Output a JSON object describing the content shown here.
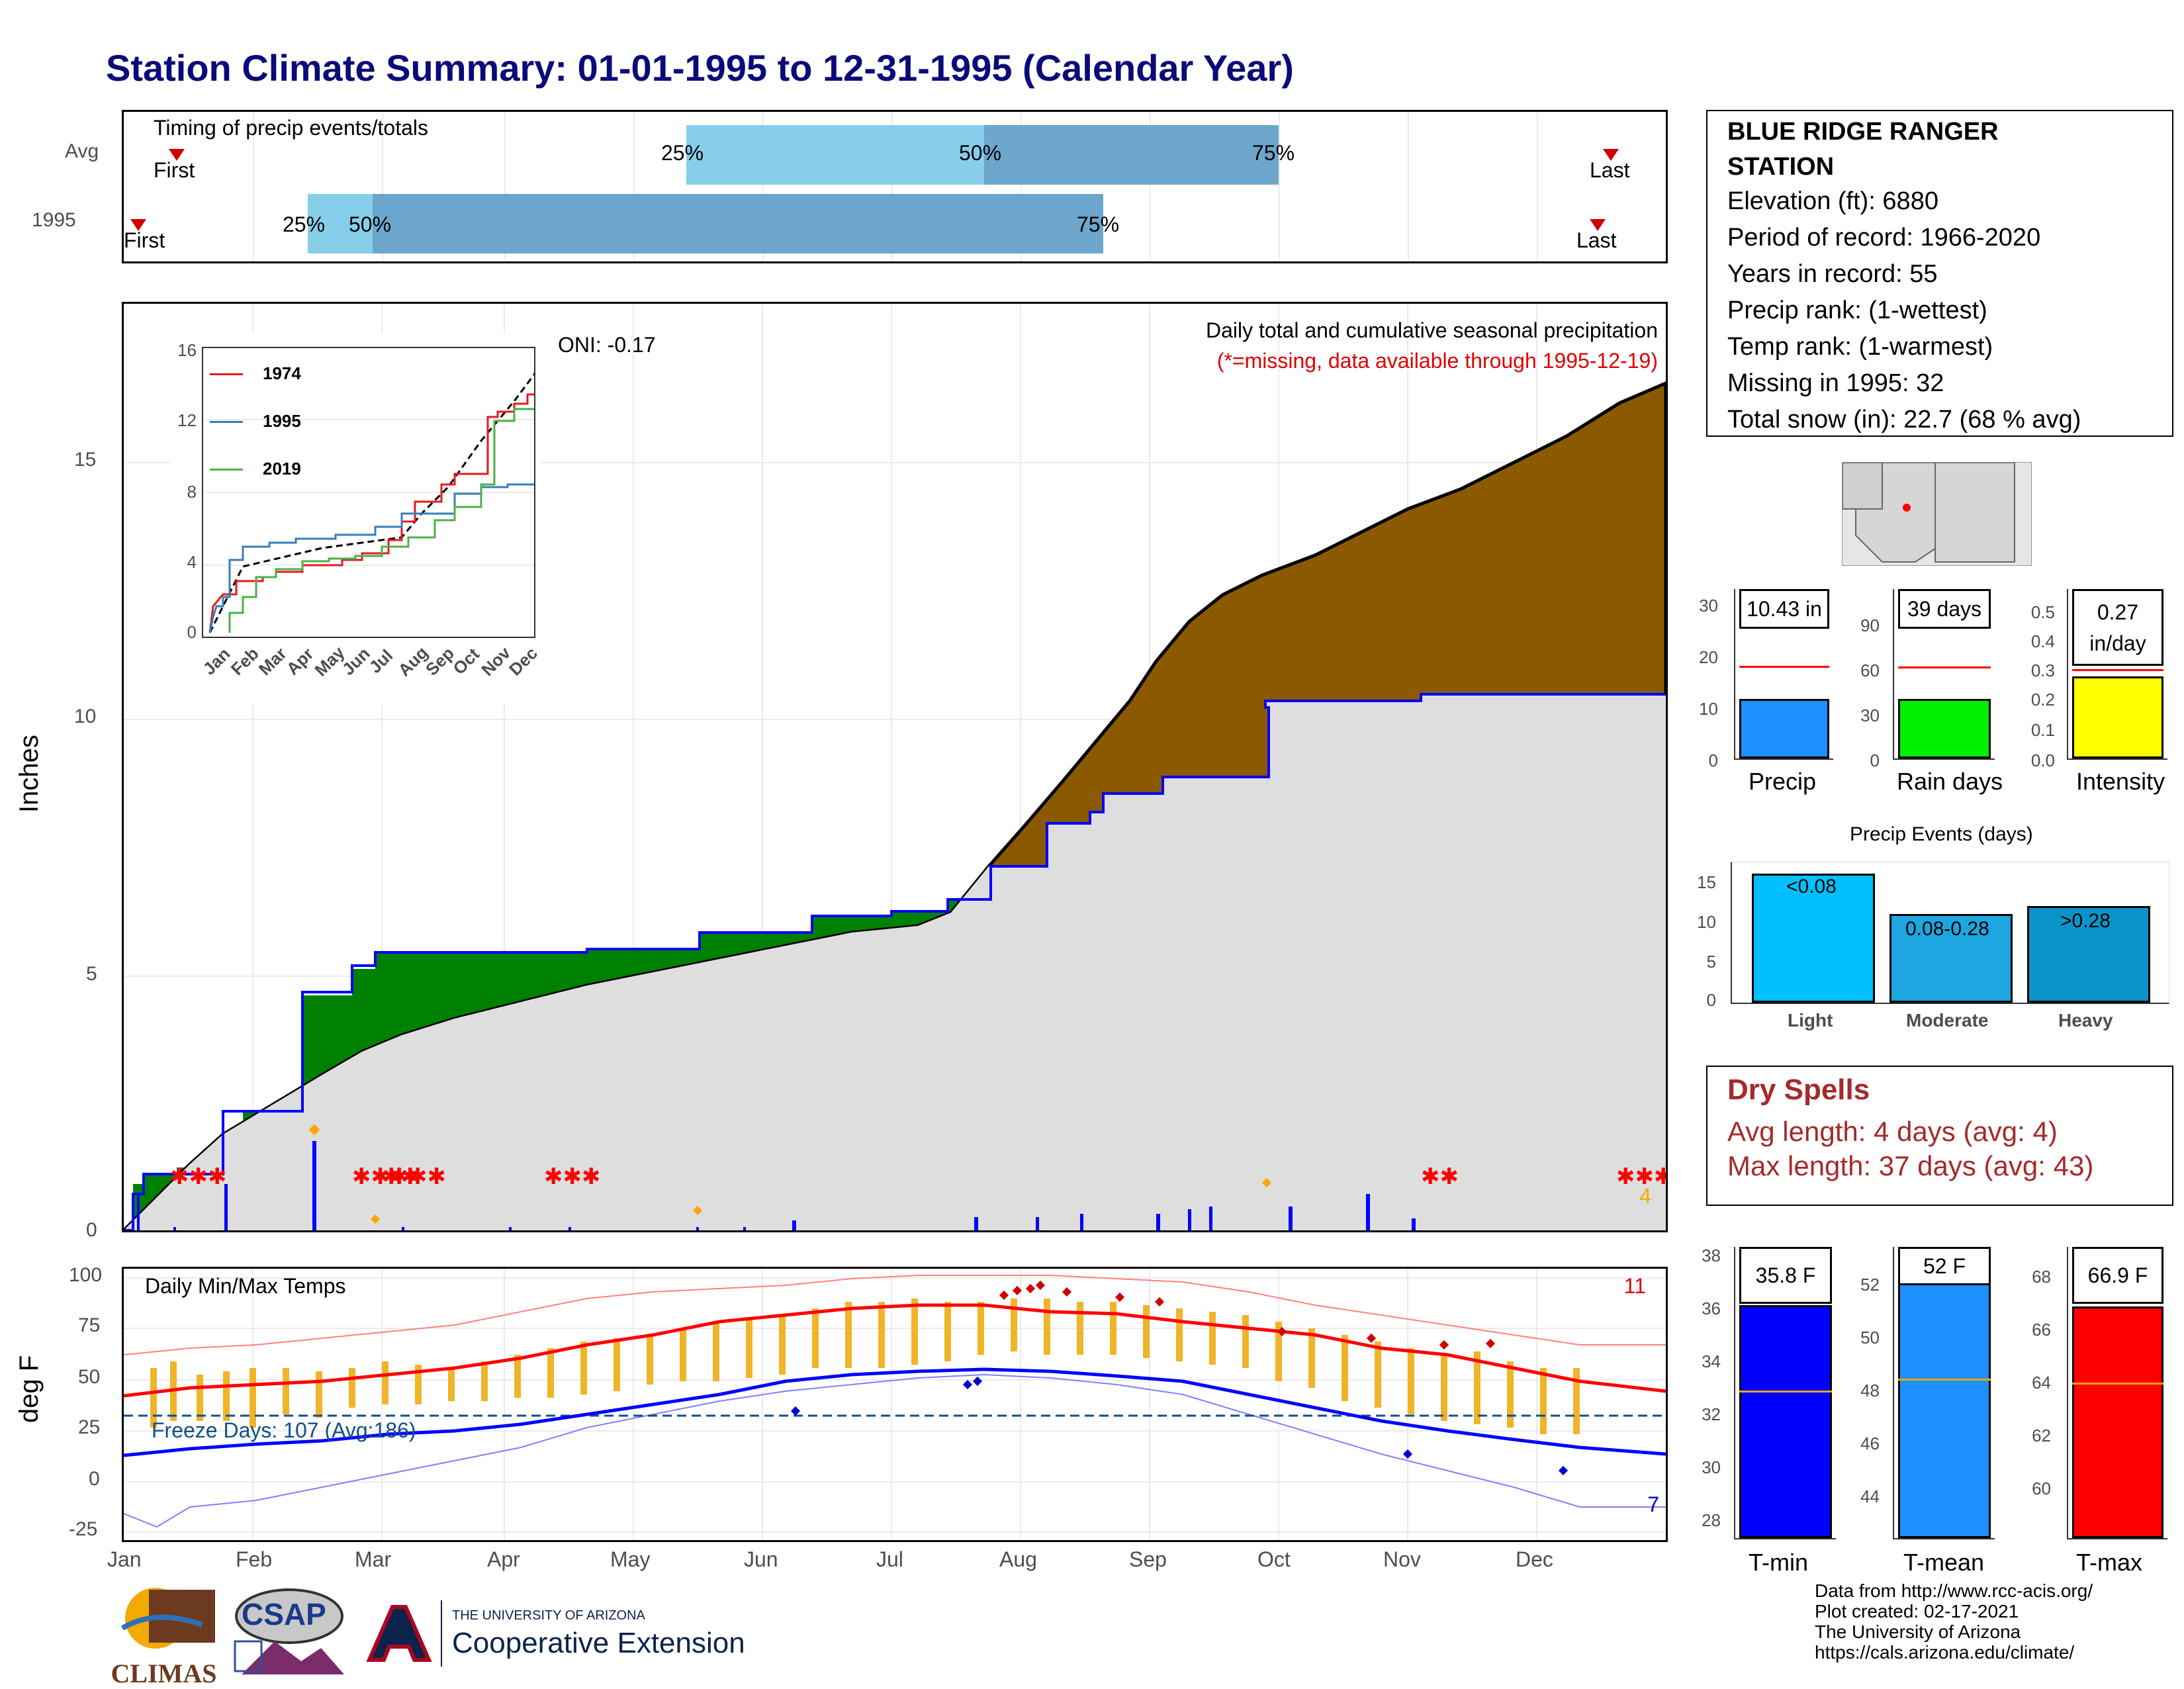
{
  "title": "Station Climate Summary: 01-01-1995 to 12-31-1995 (Calendar Year)",
  "timing": {
    "label": "Timing of precip events/totals",
    "rows": [
      "Avg",
      "1995"
    ],
    "avg": {
      "first_label": "First",
      "last_label": "Last",
      "p25": "25%",
      "p50": "50%",
      "p75": "75%"
    },
    "yr": {
      "first_label": "First",
      "last_label": "Last",
      "p25": "25%",
      "p50": "50%",
      "p75": "75%"
    }
  },
  "precip_panel": {
    "ytitle": "Inches",
    "yticks": [
      "0",
      "5",
      "10",
      "15"
    ],
    "oni": "ONI: -0.17",
    "subtitle": "Daily total and cumulative seasonal precipitation",
    "missing_note": "(*=missing, data available through 1995-12-19)",
    "missing_count": "4",
    "inset": {
      "legend": [
        "1974",
        "1995",
        "2019"
      ],
      "yticks": [
        "0",
        "4",
        "8",
        "12",
        "16"
      ],
      "xticks": [
        "Jan",
        "Feb",
        "Mar",
        "Apr",
        "May",
        "Jun",
        "Jul",
        "Aug",
        "Sep",
        "Oct",
        "Nov",
        "Dec"
      ]
    }
  },
  "temp_panel": {
    "ytitle": "deg F",
    "label": "Daily Min/Max Temps",
    "yticks": [
      "100",
      "75",
      "50",
      "25",
      "0",
      "-25"
    ],
    "freeze": "Freeze Days: 107 (Avg:186)",
    "top_count": "11",
    "bottom_count": "7"
  },
  "months": [
    "Jan",
    "Feb",
    "Mar",
    "Apr",
    "May",
    "Jun",
    "Jul",
    "Aug",
    "Sep",
    "Oct",
    "Nov",
    "Dec"
  ],
  "station": {
    "name_line1": "BLUE RIDGE RANGER",
    "name_line2": "STATION",
    "elevation": "Elevation (ft): 6880",
    "period": "Period of record: 1966-2020",
    "years": "Years in record: 55",
    "precip_rank": "Precip rank:  (1-wettest)",
    "temp_rank": "Temp rank:  (1-warmest)",
    "missing": "Missing in 1995: 32",
    "snow": "Total snow (in): 22.7 (68 % avg)"
  },
  "summary_bars": {
    "precip": {
      "label": "Precip",
      "value_text": "10.43 in",
      "value": 10.43,
      "avg": 16.5,
      "max": 30,
      "yticks": [
        "0",
        "10",
        "20",
        "30"
      ],
      "color": "#1e90ff"
    },
    "raindays": {
      "label": "Rain days",
      "value_text": "39 days",
      "value": 39,
      "avg": 58,
      "max": 105,
      "yticks": [
        "0",
        "30",
        "60",
        "90"
      ],
      "color": "#00ee00"
    },
    "intensity": {
      "label": "Intensity",
      "value_text_1": "0.27",
      "value_text_2": "in/day",
      "value": 0.27,
      "avg": 0.29,
      "max": 0.55,
      "yticks": [
        "0.0",
        "0.1",
        "0.2",
        "0.3",
        "0.4",
        "0.5"
      ],
      "color": "#ffff00"
    }
  },
  "precip_events": {
    "title": "Precip Events (days)",
    "yticks": [
      "0",
      "5",
      "10",
      "15"
    ],
    "categories": [
      "Light",
      "Moderate",
      "Heavy"
    ],
    "bar_labels": [
      "<0.08",
      "0.08-0.28",
      ">0.28"
    ],
    "values": [
      16,
      11,
      12
    ],
    "colors": [
      "#00bfff",
      "#1ea6e0",
      "#0b94c9"
    ]
  },
  "dry_spells": {
    "title": "Dry Spells",
    "avg": "Avg length: 4 days (avg: 4)",
    "max": "Max length: 37 days (avg: 43)"
  },
  "temp_bars": {
    "tmin": {
      "label": "T-min",
      "value_text": "35.8 F",
      "value": 35.8,
      "avg": 32.5,
      "ymin": 27,
      "ymax": 38,
      "yticks": [
        "28",
        "30",
        "32",
        "34",
        "36",
        "38"
      ],
      "color": "#0000ff"
    },
    "tmean": {
      "label": "T-mean",
      "value_text": "52 F",
      "value": 52,
      "avg": 48.1,
      "ymin": 42,
      "ymax": 54,
      "yticks": [
        "44",
        "46",
        "48",
        "50",
        "52"
      ],
      "color": "#1e90ff"
    },
    "tmax": {
      "label": "T-max",
      "value_text": "66.9 F",
      "value": 66.9,
      "avg": 63.7,
      "ymin": 58,
      "ymax": 69,
      "yticks": [
        "60",
        "62",
        "64",
        "66",
        "68"
      ],
      "color": "#ff0000"
    }
  },
  "footer": {
    "line1": "Data from http://www.rcc-acis.org/",
    "line2": "Plot created: 02-17-2021",
    "line3": "The University of Arizona",
    "line4": "https://cals.arizona.edu/climate/",
    "logo_climas": "CLIMAS",
    "logo_csap": "CSAP",
    "ua_small": "THE UNIVERSITY OF ARIZONA",
    "ua_big": "Cooperative Extension"
  },
  "chart_data": [
    {
      "type": "area",
      "title": "Daily total and cumulative seasonal precipitation",
      "ylabel": "Inches",
      "ylim": [
        0,
        16.2
      ],
      "series": [
        {
          "name": "1995",
          "x": [
            "01-01",
            "01-05",
            "01-10",
            "01-31",
            "02-14",
            "02-24",
            "02-28",
            "04-20",
            "05-15",
            "07-01",
            "07-15",
            "07-22",
            "07-25",
            "08-10",
            "08-20",
            "09-15",
            "09-28",
            "12-31"
          ],
          "values": [
            0,
            0.7,
            1.0,
            2.3,
            4.65,
            4.65,
            5.4,
            5.6,
            6.2,
            6.3,
            6.8,
            7.05,
            7.1,
            7.4,
            8.4,
            8.6,
            10.3,
            10.43
          ]
        },
        {
          "x": [
            "01-01",
            "02-01",
            "03-01",
            "04-01",
            "05-01",
            "06-01",
            "07-01",
            "08-01",
            "09-01",
            "10-01",
            "11-01",
            "12-01",
            "12-31"
          ],
          "values": [
            0,
            1.1,
            2.3,
            3.5,
            4.3,
            5.0,
            5.6,
            7.9,
            10.4,
            12.5,
            13.7,
            15.0,
            16.2
          ]
        }
      ]
    },
    {
      "type": "line",
      "title": "Daily Min/Max Temps",
      "ylabel": "deg F",
      "ylim": [
        -28,
        102
      ],
      "series": [
        {
          "x": [
            "Jan",
            "Feb",
            "Mar",
            "Apr",
            "May",
            "Jun",
            "Jul",
            "Aug",
            "Sep",
            "Oct",
            "Nov",
            "Dec"
          ],
          "values": [
            43,
            46,
            50,
            57,
            67,
            77,
            82,
            81,
            77,
            67,
            54,
            45
          ]
        },
        {
          "x": [
            "Jan",
            "Feb",
            "Mar",
            "Apr",
            "May",
            "Jun",
            "Jul",
            "Aug",
            "Sep",
            "Oct",
            "Nov",
            "Dec"
          ],
          "values": [
            12,
            16,
            20,
            25,
            33,
            42,
            51,
            52,
            46,
            35,
            24,
            16
          ]
        }
      ]
    }
  ]
}
